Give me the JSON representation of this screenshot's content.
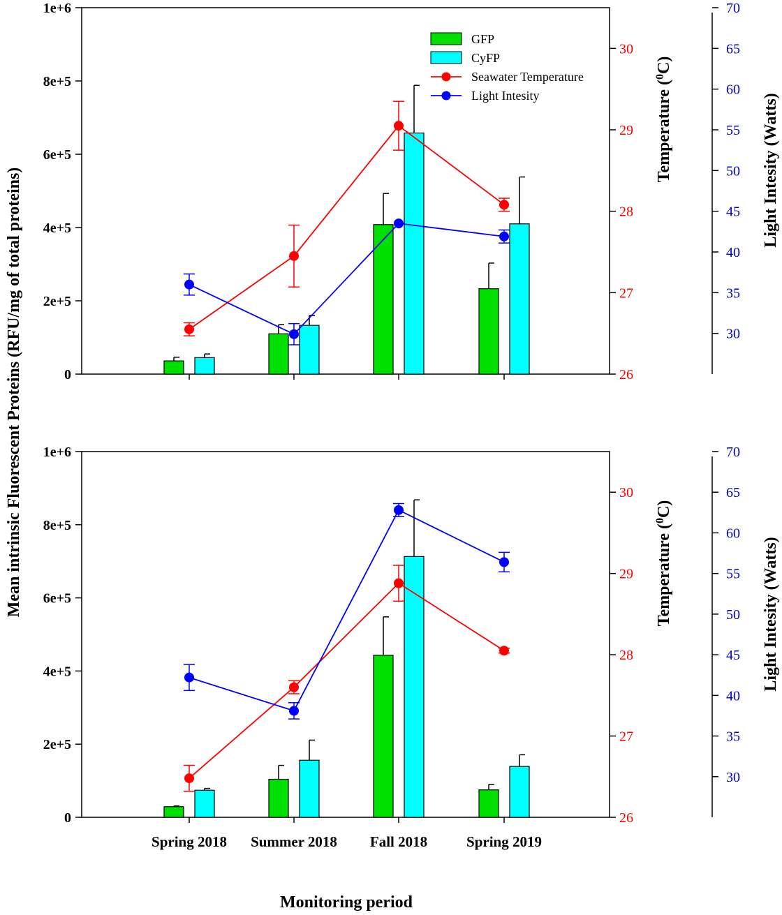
{
  "colors": {
    "gfp": "#00e000",
    "cyfp": "#00ffff",
    "temperature": "#ff0000",
    "light": "#0000ff",
    "temp_axis": "#ff0000",
    "light_axis": "#0000cc"
  },
  "chart_data": {
    "type": "bar",
    "categories": [
      "Spring 2018",
      "Summer 2018",
      "Fall 2018",
      "Spring 2019"
    ],
    "xlabel": "Monitoring period",
    "ylabel": "Mean intrinsic Fluorescent Proteins (RFU/mg of total proteins)",
    "y2label_prefix": "Temperature (",
    "y2label_sup": "0",
    "y2label_suffix": "C)",
    "y3label": "Light Intesity (Watts)",
    "ylim": [
      0,
      1000000
    ],
    "y2lim": [
      26,
      30.5
    ],
    "y3lim": [
      25,
      70
    ],
    "yticks": [
      "0",
      "2e+5",
      "4e+5",
      "6e+5",
      "8e+5",
      "1e+6"
    ],
    "y2ticks": [
      "26",
      "27",
      "28",
      "29",
      "30"
    ],
    "y3ticks": [
      "30",
      "35",
      "40",
      "45",
      "50",
      "55",
      "60",
      "65",
      "70"
    ],
    "legend": [
      "GFP",
      "CyFP",
      "Seawater Temperature",
      "Light Intesity"
    ],
    "legend_position": "top-right",
    "panels": [
      {
        "gfp": [
          36000,
          110000,
          408000,
          233000
        ],
        "gfp_err": [
          10000,
          25000,
          85000,
          70000
        ],
        "cyfp": [
          45000,
          133000,
          658000,
          410000
        ],
        "cyfp_err": [
          10000,
          27000,
          130000,
          128000
        ],
        "temperature": [
          26.55,
          27.45,
          29.05,
          28.08
        ],
        "temperature_err": [
          0.08,
          0.38,
          0.3,
          0.08
        ],
        "light": [
          36,
          29.9,
          43.5,
          41.9
        ],
        "light_err": [
          1.3,
          1.3,
          0,
          0.8
        ]
      },
      {
        "gfp": [
          29000,
          104000,
          443000,
          75000
        ],
        "gfp_err": [
          2000,
          38000,
          105000,
          15000
        ],
        "cyfp": [
          74000,
          156000,
          713000,
          139000
        ],
        "cyfp_err": [
          5000,
          55000,
          155000,
          32000
        ],
        "temperature": [
          26.48,
          27.6,
          28.88,
          28.05
        ],
        "temperature_err": [
          0.16,
          0.08,
          0.22,
          0.03
        ],
        "light": [
          42.2,
          38.1,
          62.8,
          56.4
        ],
        "light_err": [
          1.6,
          1.0,
          0.8,
          1.2
        ]
      }
    ]
  }
}
